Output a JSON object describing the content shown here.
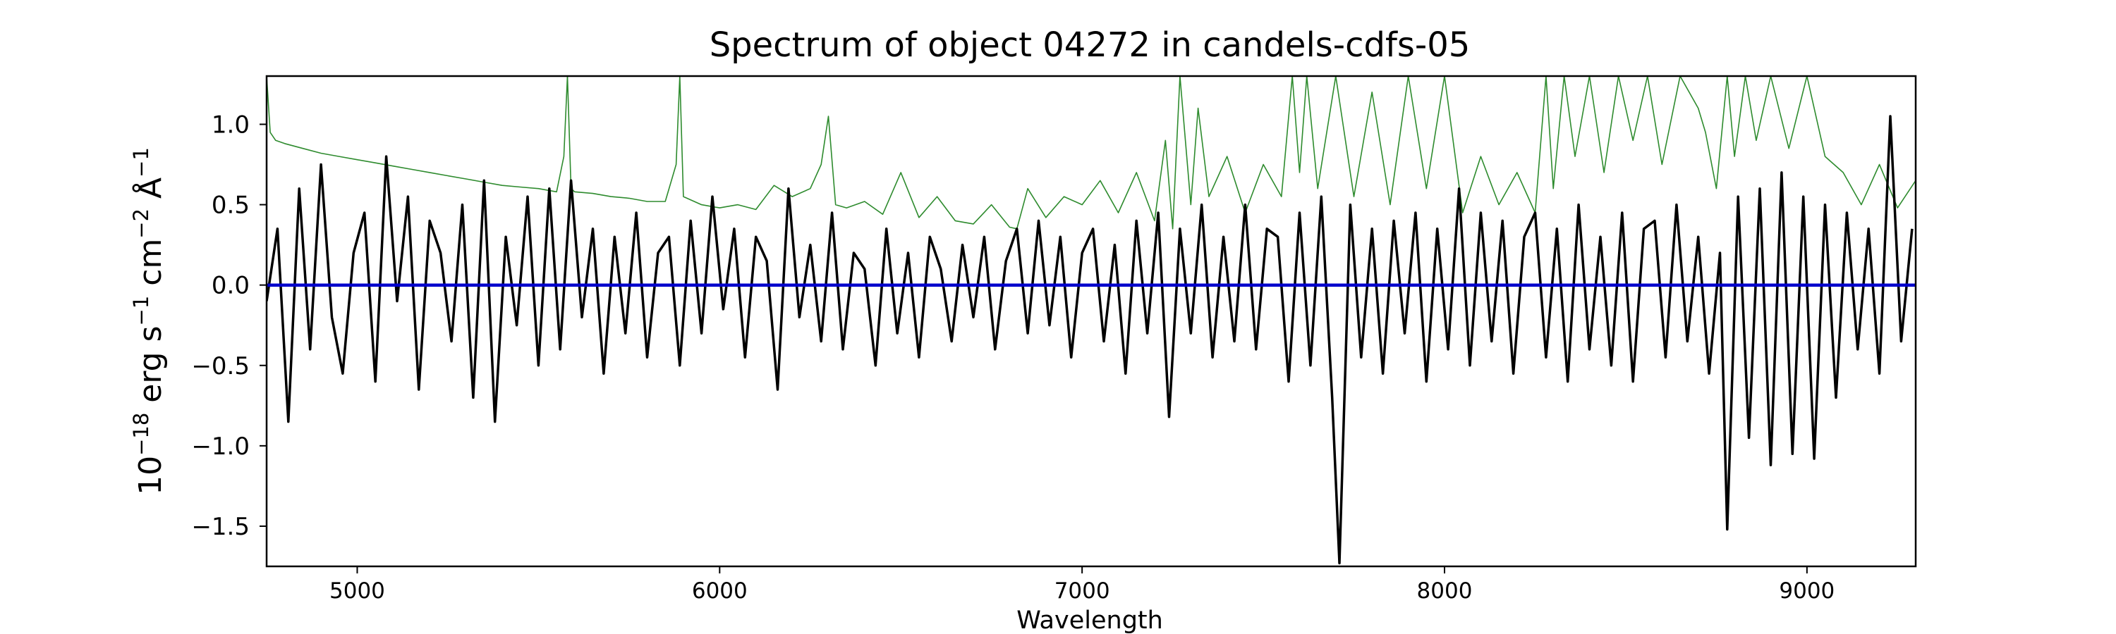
{
  "chart_data": {
    "type": "line",
    "title": "Spectrum of object 04272 in candels-cdfs-05",
    "xlabel": "Wavelength",
    "ylabel": {
      "base": "10",
      "exp1": "−18",
      "unit1": " erg s",
      "exp2": "−1",
      "unit2": " cm",
      "exp3": "−2",
      "unit3": " Å",
      "exp4": "−1"
    },
    "xlim": [
      4750,
      9300
    ],
    "ylim": [
      -1.75,
      1.3
    ],
    "xticks": [
      5000,
      6000,
      7000,
      8000,
      9000
    ],
    "xtick_labels": [
      "5000",
      "6000",
      "7000",
      "8000",
      "9000"
    ],
    "yticks": [
      -1.5,
      -1.0,
      -0.5,
      0.0,
      0.5,
      1.0
    ],
    "ytick_labels": [
      "−1.5",
      "−1.0",
      "−0.5",
      "0.0",
      "0.5",
      "1.0"
    ],
    "grid": false,
    "series": [
      {
        "role": "flux",
        "color": "#000000",
        "x": [
          4750,
          4780,
          4810,
          4840,
          4870,
          4900,
          4930,
          4960,
          4990,
          5020,
          5050,
          5080,
          5110,
          5140,
          5170,
          5200,
          5230,
          5260,
          5290,
          5320,
          5350,
          5380,
          5410,
          5440,
          5470,
          5500,
          5530,
          5560,
          5590,
          5620,
          5650,
          5680,
          5710,
          5740,
          5770,
          5800,
          5830,
          5860,
          5890,
          5920,
          5950,
          5980,
          6010,
          6040,
          6070,
          6100,
          6130,
          6160,
          6190,
          6220,
          6250,
          6280,
          6310,
          6340,
          6370,
          6400,
          6430,
          6460,
          6490,
          6520,
          6550,
          6580,
          6610,
          6640,
          6670,
          6700,
          6730,
          6760,
          6790,
          6820,
          6850,
          6880,
          6910,
          6940,
          6970,
          7000,
          7030,
          7060,
          7090,
          7120,
          7150,
          7180,
          7210,
          7240,
          7270,
          7300,
          7330,
          7360,
          7390,
          7420,
          7450,
          7480,
          7510,
          7540,
          7570,
          7600,
          7630,
          7660,
          7690,
          7710,
          7740,
          7770,
          7800,
          7830,
          7860,
          7890,
          7920,
          7950,
          7980,
          8010,
          8040,
          8070,
          8100,
          8130,
          8160,
          8190,
          8220,
          8250,
          8280,
          8310,
          8340,
          8370,
          8400,
          8430,
          8460,
          8490,
          8520,
          8550,
          8580,
          8610,
          8640,
          8670,
          8700,
          8730,
          8760,
          8780,
          8810,
          8840,
          8870,
          8900,
          8930,
          8960,
          8990,
          9020,
          9050,
          9080,
          9110,
          9140,
          9170,
          9200,
          9230,
          9260,
          9290
        ],
        "y": [
          -0.1,
          0.35,
          -0.85,
          0.6,
          -0.4,
          0.75,
          -0.2,
          -0.55,
          0.2,
          0.45,
          -0.6,
          0.8,
          -0.1,
          0.55,
          -0.65,
          0.4,
          0.2,
          -0.35,
          0.5,
          -0.7,
          0.65,
          -0.85,
          0.3,
          -0.25,
          0.55,
          -0.5,
          0.6,
          -0.4,
          0.65,
          -0.2,
          0.35,
          -0.55,
          0.3,
          -0.3,
          0.45,
          -0.45,
          0.2,
          0.3,
          -0.5,
          0.4,
          -0.3,
          0.55,
          -0.15,
          0.35,
          -0.45,
          0.3,
          0.15,
          -0.65,
          0.6,
          -0.2,
          0.25,
          -0.35,
          0.45,
          -0.4,
          0.2,
          0.1,
          -0.5,
          0.35,
          -0.3,
          0.2,
          -0.45,
          0.3,
          0.1,
          -0.35,
          0.25,
          -0.2,
          0.3,
          -0.4,
          0.15,
          0.35,
          -0.3,
          0.4,
          -0.25,
          0.3,
          -0.45,
          0.2,
          0.35,
          -0.35,
          0.25,
          -0.55,
          0.4,
          -0.3,
          0.45,
          -0.82,
          0.35,
          -0.3,
          0.5,
          -0.45,
          0.3,
          -0.35,
          0.5,
          -0.4,
          0.35,
          0.3,
          -0.6,
          0.45,
          -0.5,
          0.55,
          -0.7,
          -1.73,
          0.5,
          -0.45,
          0.35,
          -0.55,
          0.4,
          -0.3,
          0.45,
          -0.6,
          0.35,
          -0.4,
          0.6,
          -0.5,
          0.45,
          -0.35,
          0.4,
          -0.55,
          0.3,
          0.45,
          -0.45,
          0.35,
          -0.6,
          0.5,
          -0.4,
          0.3,
          -0.5,
          0.45,
          -0.6,
          0.35,
          0.4,
          -0.45,
          0.5,
          -0.35,
          0.3,
          -0.55,
          0.2,
          -1.52,
          0.55,
          -0.95,
          0.6,
          -1.12,
          0.7,
          -1.05,
          0.55,
          -1.08,
          0.5,
          -0.7,
          0.45,
          -0.4,
          0.35,
          -0.55,
          1.05,
          -0.35,
          0.35
        ]
      },
      {
        "role": "noise",
        "color": "#2e8b2e",
        "x": [
          4750,
          4760,
          4775,
          4800,
          4850,
          4900,
          4950,
          5000,
          5050,
          5100,
          5150,
          5200,
          5250,
          5300,
          5350,
          5400,
          5450,
          5500,
          5550,
          5570,
          5580,
          5590,
          5600,
          5650,
          5700,
          5750,
          5800,
          5850,
          5880,
          5890,
          5900,
          5950,
          6000,
          6050,
          6100,
          6150,
          6200,
          6250,
          6280,
          6300,
          6320,
          6350,
          6400,
          6450,
          6500,
          6550,
          6600,
          6650,
          6700,
          6750,
          6800,
          6820,
          6850,
          6900,
          6950,
          7000,
          7050,
          7100,
          7150,
          7200,
          7230,
          7250,
          7270,
          7300,
          7320,
          7350,
          7400,
          7450,
          7500,
          7550,
          7580,
          7600,
          7620,
          7650,
          7700,
          7750,
          7800,
          7850,
          7900,
          7950,
          8000,
          8050,
          8100,
          8150,
          8200,
          8250,
          8280,
          8300,
          8330,
          8360,
          8400,
          8440,
          8480,
          8520,
          8560,
          8600,
          8650,
          8700,
          8720,
          8750,
          8780,
          8800,
          8830,
          8860,
          8900,
          8950,
          9000,
          9050,
          9100,
          9150,
          9200,
          9250,
          9300
        ],
        "y": [
          1.3,
          0.95,
          0.9,
          0.88,
          0.85,
          0.82,
          0.8,
          0.78,
          0.76,
          0.74,
          0.72,
          0.7,
          0.68,
          0.66,
          0.64,
          0.62,
          0.61,
          0.6,
          0.58,
          0.8,
          1.3,
          0.6,
          0.58,
          0.57,
          0.55,
          0.54,
          0.52,
          0.52,
          0.75,
          1.3,
          0.55,
          0.5,
          0.48,
          0.5,
          0.47,
          0.62,
          0.55,
          0.6,
          0.75,
          1.05,
          0.5,
          0.48,
          0.52,
          0.44,
          0.7,
          0.42,
          0.55,
          0.4,
          0.38,
          0.5,
          0.36,
          0.35,
          0.6,
          0.42,
          0.55,
          0.5,
          0.65,
          0.45,
          0.7,
          0.4,
          0.9,
          0.35,
          1.3,
          0.5,
          1.1,
          0.55,
          0.8,
          0.45,
          0.75,
          0.55,
          1.3,
          0.7,
          1.3,
          0.6,
          1.3,
          0.55,
          1.2,
          0.5,
          1.3,
          0.6,
          1.3,
          0.45,
          0.8,
          0.5,
          0.7,
          0.45,
          1.3,
          0.6,
          1.3,
          0.8,
          1.3,
          0.7,
          1.3,
          0.9,
          1.3,
          0.75,
          1.3,
          1.1,
          0.95,
          0.6,
          1.3,
          0.8,
          1.3,
          0.9,
          1.3,
          0.85,
          1.3,
          0.8,
          0.7,
          0.5,
          0.75,
          0.48,
          0.65
        ]
      },
      {
        "role": "model",
        "color": "#0000cc",
        "x": [
          4750,
          9300
        ],
        "y": [
          0,
          0
        ]
      }
    ]
  }
}
